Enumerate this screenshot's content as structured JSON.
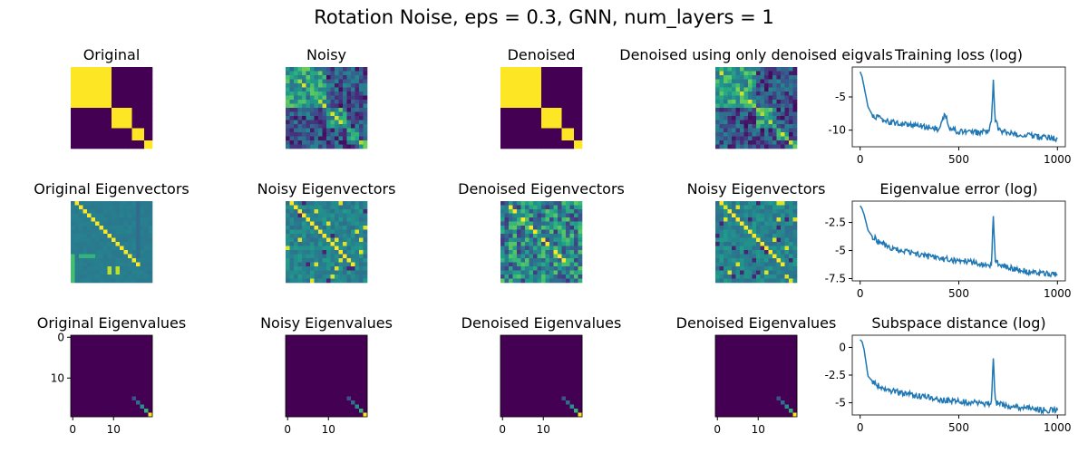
{
  "figure": {
    "suptitle": "Rotation Noise, eps = 0.3, GNN, num_layers = 1"
  },
  "colors": {
    "viridis_low": "#440154",
    "viridis_mid": "#21918c",
    "viridis_high": "#fde725",
    "line": "#1f77b4"
  },
  "chart_data": [
    {
      "type": "heatmap",
      "title": "Original",
      "axes_visible": false,
      "size": 20,
      "pattern": "block_diagonal",
      "blocks": [
        10,
        5,
        3,
        2
      ]
    },
    {
      "type": "heatmap",
      "title": "Noisy",
      "axes_visible": false,
      "size": 20,
      "pattern": "noisy_block_matrix"
    },
    {
      "type": "heatmap",
      "title": "Denoised",
      "axes_visible": false,
      "size": 20,
      "pattern": "block_diagonal",
      "blocks": [
        10,
        5,
        3,
        2
      ]
    },
    {
      "type": "heatmap",
      "title": "Denoised using only denoised eigvals",
      "axes_visible": false,
      "size": 20,
      "pattern": "noisy_block_matrix"
    },
    {
      "type": "line",
      "title": "Training loss (log)",
      "x": [
        0,
        10,
        20,
        40,
        60,
        80,
        100,
        150,
        200,
        300,
        400,
        430,
        450,
        500,
        600,
        650,
        665,
        675,
        685,
        700,
        750,
        800,
        850,
        900,
        950,
        1000
      ],
      "y": [
        -1.2,
        -2.0,
        -3.5,
        -6.5,
        -7.6,
        -8.0,
        -8.3,
        -8.8,
        -9.0,
        -9.4,
        -9.8,
        -7.5,
        -9.7,
        -10.2,
        -10.4,
        -10.2,
        -8.5,
        -2.8,
        -8.5,
        -9.8,
        -10.5,
        -10.6,
        -10.8,
        -11.0,
        -11.2,
        -11.3
      ],
      "xlim": [
        -40,
        1040
      ],
      "ylim": [
        -12.5,
        -0.5
      ],
      "xticks": [
        0,
        500,
        1000
      ],
      "yticks": [
        -10,
        -5
      ]
    },
    {
      "type": "heatmap",
      "title": "Original Eigenvectors",
      "axes_visible": false,
      "size": 20,
      "pattern": "eigenvector_matrix"
    },
    {
      "type": "heatmap",
      "title": "Noisy Eigenvectors",
      "axes_visible": false,
      "size": 20,
      "pattern": "noisy_eigenvector_matrix"
    },
    {
      "type": "heatmap",
      "title": "Denoised Eigenvectors",
      "axes_visible": false,
      "size": 20,
      "pattern": "scrambled_eigenvector_matrix"
    },
    {
      "type": "heatmap",
      "title": "Noisy Eigenvectors",
      "axes_visible": false,
      "size": 20,
      "pattern": "noisy_eigenvector_matrix"
    },
    {
      "type": "line",
      "title": "Eigenvalue error (log)",
      "x": [
        0,
        10,
        20,
        40,
        60,
        80,
        100,
        150,
        200,
        300,
        400,
        500,
        600,
        650,
        665,
        675,
        685,
        700,
        750,
        800,
        850,
        900,
        950,
        1000
      ],
      "y": [
        -1.0,
        -1.3,
        -1.8,
        -3.2,
        -3.7,
        -4.0,
        -4.3,
        -4.7,
        -5.0,
        -5.4,
        -5.7,
        -5.9,
        -6.1,
        -6.3,
        -6.5,
        -1.8,
        -6.0,
        -6.2,
        -6.5,
        -6.7,
        -6.9,
        -7.0,
        -7.1,
        -7.2
      ],
      "xlim": [
        -40,
        1040
      ],
      "ylim": [
        -7.7,
        -0.6
      ],
      "xticks": [
        0,
        500,
        1000
      ],
      "yticks": [
        -7.5,
        -5.0,
        -2.5
      ]
    },
    {
      "type": "heatmap",
      "title": "Original Eigenvalues",
      "axes_visible": true,
      "size": 20,
      "pattern": "diagonal_eigenvalues",
      "xticks": [
        0,
        10
      ],
      "yticks": [
        0,
        10
      ]
    },
    {
      "type": "heatmap",
      "title": "Noisy Eigenvalues",
      "axes_visible": true,
      "size": 20,
      "pattern": "diagonal_eigenvalues",
      "xticks": [
        0,
        10
      ],
      "yticks": []
    },
    {
      "type": "heatmap",
      "title": "Denoised Eigenvalues",
      "axes_visible": true,
      "size": 20,
      "pattern": "diagonal_eigenvalues",
      "xticks": [
        0,
        10
      ],
      "yticks": []
    },
    {
      "type": "heatmap",
      "title": "Denoised Eigenvalues",
      "axes_visible": true,
      "size": 20,
      "pattern": "diagonal_eigenvalues",
      "xticks": [
        0,
        10
      ],
      "yticks": []
    },
    {
      "type": "line",
      "title": "Subspace distance (log)",
      "x": [
        0,
        10,
        20,
        40,
        60,
        80,
        100,
        150,
        200,
        300,
        400,
        500,
        600,
        650,
        665,
        675,
        685,
        700,
        750,
        800,
        850,
        900,
        950,
        1000
      ],
      "y": [
        0.7,
        0.5,
        -0.2,
        -2.6,
        -3.0,
        -3.3,
        -3.6,
        -3.9,
        -4.1,
        -4.4,
        -4.7,
        -4.9,
        -5.0,
        -5.1,
        -5.1,
        -0.8,
        -4.9,
        -5.1,
        -5.3,
        -5.4,
        -5.5,
        -5.6,
        -5.7,
        -5.7
      ],
      "xlim": [
        -40,
        1040
      ],
      "ylim": [
        -6.1,
        1.1
      ],
      "xticks": [
        0,
        500,
        1000
      ],
      "yticks": [
        -5.0,
        -2.5,
        0.0
      ]
    }
  ]
}
